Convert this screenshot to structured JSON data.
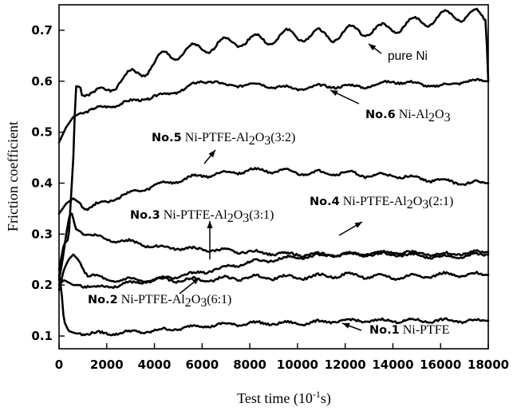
{
  "chart_data": {
    "type": "line",
    "xlabel": "Test time (10",
    "xlabel_sup": "-1",
    "xlabel_tail": "s)",
    "ylabel": "Friction coefficient",
    "xlim": [
      0,
      18000
    ],
    "ylim": [
      0.075,
      0.75
    ],
    "x_ticks": [
      0,
      2000,
      4000,
      6000,
      8000,
      10000,
      12000,
      14000,
      16000,
      18000
    ],
    "x_tick_labels": [
      "0",
      "2000",
      "4000",
      "6000",
      "8000",
      "10000",
      "12000",
      "14000",
      "16000",
      "18000"
    ],
    "y_ticks": [
      0.1,
      0.2,
      0.3,
      0.4,
      0.5,
      0.6,
      0.7
    ],
    "y_tick_labels": [
      "0.1",
      "0.2",
      "0.3",
      "0.4",
      "0.5",
      "0.6",
      "0.7"
    ],
    "grid": false,
    "legend": "none",
    "series": [
      {
        "name": "pure Ni",
        "x": [
          0,
          200,
          400,
          600,
          700,
          800,
          1500,
          2500,
          3500,
          4500,
          5500,
          6500,
          7500,
          8500,
          9500,
          10500,
          11500,
          12500,
          13500,
          14500,
          15500,
          16500,
          17500,
          17900,
          18000
        ],
        "y": [
          0.23,
          0.28,
          0.29,
          0.45,
          0.59,
          0.59,
          0.57,
          0.6,
          0.62,
          0.65,
          0.66,
          0.67,
          0.68,
          0.68,
          0.69,
          0.69,
          0.69,
          0.7,
          0.7,
          0.71,
          0.72,
          0.73,
          0.73,
          0.72,
          0.6
        ]
      },
      {
        "name": "No.6 Ni-Al2O3",
        "x": [
          0,
          300,
          600,
          1000,
          2000,
          3000,
          4000,
          5000,
          6000,
          6500,
          7000,
          8000,
          9000,
          10000,
          11000,
          12000,
          13000,
          14000,
          15000,
          16000,
          17000,
          18000
        ],
        "y": [
          0.48,
          0.51,
          0.53,
          0.54,
          0.55,
          0.56,
          0.57,
          0.58,
          0.6,
          0.6,
          0.59,
          0.595,
          0.59,
          0.585,
          0.59,
          0.59,
          0.59,
          0.6,
          0.595,
          0.59,
          0.6,
          0.6
        ]
      },
      {
        "name": "No.5 Ni-PTFE-Al2O3(3:2)",
        "x": [
          0,
          300,
          600,
          900,
          1200,
          2000,
          3000,
          4000,
          5000,
          6000,
          7000,
          8000,
          9000,
          10000,
          11000,
          12000,
          13000,
          14000,
          15000,
          16000,
          17000,
          18000
        ],
        "y": [
          0.34,
          0.36,
          0.37,
          0.36,
          0.35,
          0.365,
          0.38,
          0.395,
          0.405,
          0.415,
          0.42,
          0.425,
          0.425,
          0.42,
          0.42,
          0.42,
          0.415,
          0.415,
          0.41,
          0.405,
          0.4,
          0.4
        ]
      },
      {
        "name": "No.3 Ni-PTFE-Al2O3(3:1)",
        "x": [
          0,
          150,
          300,
          450,
          550,
          700,
          900,
          1200,
          2000,
          3000,
          4000,
          6000,
          8000,
          10000,
          12000,
          14000,
          16000,
          18000
        ],
        "y": [
          0.21,
          0.25,
          0.3,
          0.34,
          0.34,
          0.31,
          0.305,
          0.3,
          0.29,
          0.285,
          0.275,
          0.27,
          0.265,
          0.26,
          0.26,
          0.26,
          0.255,
          0.26
        ]
      },
      {
        "name": "No.4 Ni-PTFE-Al2O3(2:1)",
        "x": [
          0,
          200,
          400,
          600,
          1000,
          1500,
          2500,
          4000,
          6000,
          8000,
          10000,
          12000,
          14000,
          16000,
          18000
        ],
        "y": [
          0.2,
          0.21,
          0.205,
          0.2,
          0.2,
          0.195,
          0.2,
          0.21,
          0.225,
          0.245,
          0.255,
          0.26,
          0.265,
          0.26,
          0.265
        ]
      },
      {
        "name": "No.2 Ni-PTFE-Al2O3(6:1)",
        "x": [
          0,
          200,
          400,
          600,
          800,
          1200,
          2000,
          4000,
          6000,
          8000,
          10000,
          12000,
          14000,
          16000,
          18000
        ],
        "y": [
          0.19,
          0.23,
          0.25,
          0.26,
          0.25,
          0.22,
          0.21,
          0.21,
          0.21,
          0.215,
          0.215,
          0.22,
          0.215,
          0.22,
          0.22
        ]
      },
      {
        "name": "No.1 Ni-PTFE",
        "x": [
          0,
          100,
          200,
          400,
          700,
          1000,
          2000,
          4000,
          6000,
          8000,
          10000,
          12000,
          14000,
          16000,
          18000
        ],
        "y": [
          0.22,
          0.19,
          0.13,
          0.11,
          0.105,
          0.105,
          0.105,
          0.11,
          0.12,
          0.125,
          0.125,
          0.13,
          0.13,
          0.13,
          0.13
        ]
      }
    ],
    "annotations": [
      {
        "id": "pure-ni",
        "parts": [
          {
            "t": "pure Ni",
            "s": "sans"
          }
        ]
      },
      {
        "id": "no6",
        "parts": [
          {
            "t": "No.6",
            "s": "bold"
          },
          {
            "t": "  Ni-Al",
            "s": "serif"
          },
          {
            "t": "2",
            "s": "serif-sub"
          },
          {
            "t": "O",
            "s": "serif"
          },
          {
            "t": "3",
            "s": "serif-sub"
          }
        ]
      },
      {
        "id": "no5",
        "parts": [
          {
            "t": "No.5",
            "s": "bold"
          },
          {
            "t": " Ni-PTFE-Al",
            "s": "serif"
          },
          {
            "t": "2",
            "s": "serif-sub"
          },
          {
            "t": "O",
            "s": "serif"
          },
          {
            "t": "3",
            "s": "serif-sub"
          },
          {
            "t": "(3:2)",
            "s": "serif"
          }
        ]
      },
      {
        "id": "no3",
        "parts": [
          {
            "t": "No.3",
            "s": "bold"
          },
          {
            "t": "  Ni-PTFE-Al",
            "s": "serif"
          },
          {
            "t": "2",
            "s": "serif-sub"
          },
          {
            "t": "O",
            "s": "serif"
          },
          {
            "t": "3",
            "s": "serif-sub"
          },
          {
            "t": "(3:1)",
            "s": "serif"
          }
        ]
      },
      {
        "id": "no4",
        "parts": [
          {
            "t": "No.4",
            "s": "bold"
          },
          {
            "t": " Ni-PTFE-Al",
            "s": "serif"
          },
          {
            "t": "2",
            "s": "serif-sub"
          },
          {
            "t": "O",
            "s": "serif"
          },
          {
            "t": "3",
            "s": "serif-sub"
          },
          {
            "t": "(2:1)",
            "s": "serif"
          }
        ]
      },
      {
        "id": "no2",
        "parts": [
          {
            "t": "No.2",
            "s": "bold"
          },
          {
            "t": " Ni-PTFE-Al",
            "s": "serif"
          },
          {
            "t": "2",
            "s": "serif-sub"
          },
          {
            "t": "O",
            "s": "serif"
          },
          {
            "t": "3",
            "s": "serif-sub"
          },
          {
            "t": "(6:1)",
            "s": "serif"
          }
        ]
      },
      {
        "id": "no1",
        "parts": [
          {
            "t": "No.1",
            "s": "bold"
          },
          {
            "t": "  Ni-PTFE",
            "s": "serif"
          }
        ]
      }
    ]
  }
}
